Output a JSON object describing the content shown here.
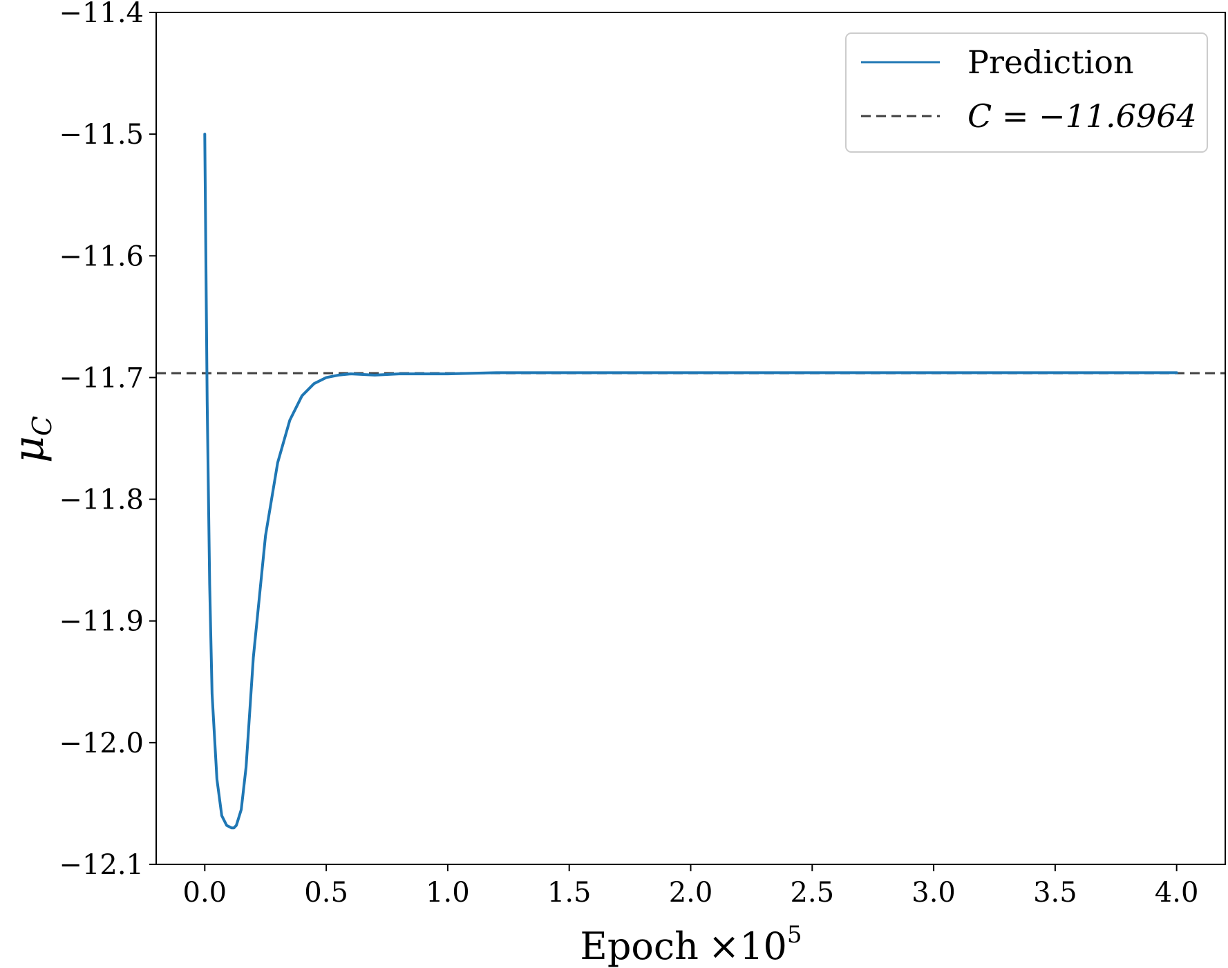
{
  "chart_data": {
    "type": "line",
    "xlabel": "Epoch",
    "xlabel_multiplier": "×10",
    "xlabel_exponent": "5",
    "ylabel": "μ",
    "ylabel_subscript": "C",
    "xlim": [
      -0.2,
      4.2
    ],
    "ylim": [
      -12.1,
      -11.4
    ],
    "xticks": [
      0.0,
      0.5,
      1.0,
      1.5,
      2.0,
      2.5,
      3.0,
      3.5,
      4.0
    ],
    "xtick_labels": [
      "0.0",
      "0.5",
      "1.0",
      "1.5",
      "2.0",
      "2.5",
      "3.0",
      "3.5",
      "4.0"
    ],
    "yticks": [
      -12.1,
      -12.0,
      -11.9,
      -11.8,
      -11.7,
      -11.6,
      -11.5,
      -11.4
    ],
    "ytick_labels": [
      "−12.1",
      "−12.0",
      "−11.9",
      "−11.8",
      "−11.7",
      "−11.6",
      "−11.5",
      "−11.4"
    ],
    "grid": false,
    "legend_position": "top-right",
    "series": [
      {
        "name": "Prediction",
        "color": "#1f77b4",
        "style": "solid",
        "x": [
          0.0,
          0.01,
          0.02,
          0.03,
          0.05,
          0.07,
          0.09,
          0.11,
          0.12,
          0.13,
          0.15,
          0.17,
          0.2,
          0.25,
          0.3,
          0.35,
          0.4,
          0.45,
          0.5,
          0.55,
          0.6,
          0.7,
          0.8,
          0.9,
          1.0,
          1.2,
          1.5,
          2.0,
          2.5,
          3.0,
          3.5,
          4.0
        ],
        "y": [
          -11.5,
          -11.72,
          -11.87,
          -11.96,
          -12.03,
          -12.06,
          -12.068,
          -12.07,
          -12.07,
          -12.068,
          -12.055,
          -12.02,
          -11.93,
          -11.83,
          -11.77,
          -11.735,
          -11.715,
          -11.705,
          -11.7,
          -11.698,
          -11.697,
          -11.698,
          -11.697,
          -11.697,
          -11.697,
          -11.696,
          -11.696,
          -11.696,
          -11.696,
          -11.696,
          -11.696,
          -11.696
        ]
      },
      {
        "name": "C = −11.6964",
        "color": "#404040",
        "style": "dashed",
        "y_constant": -11.6964
      }
    ]
  }
}
